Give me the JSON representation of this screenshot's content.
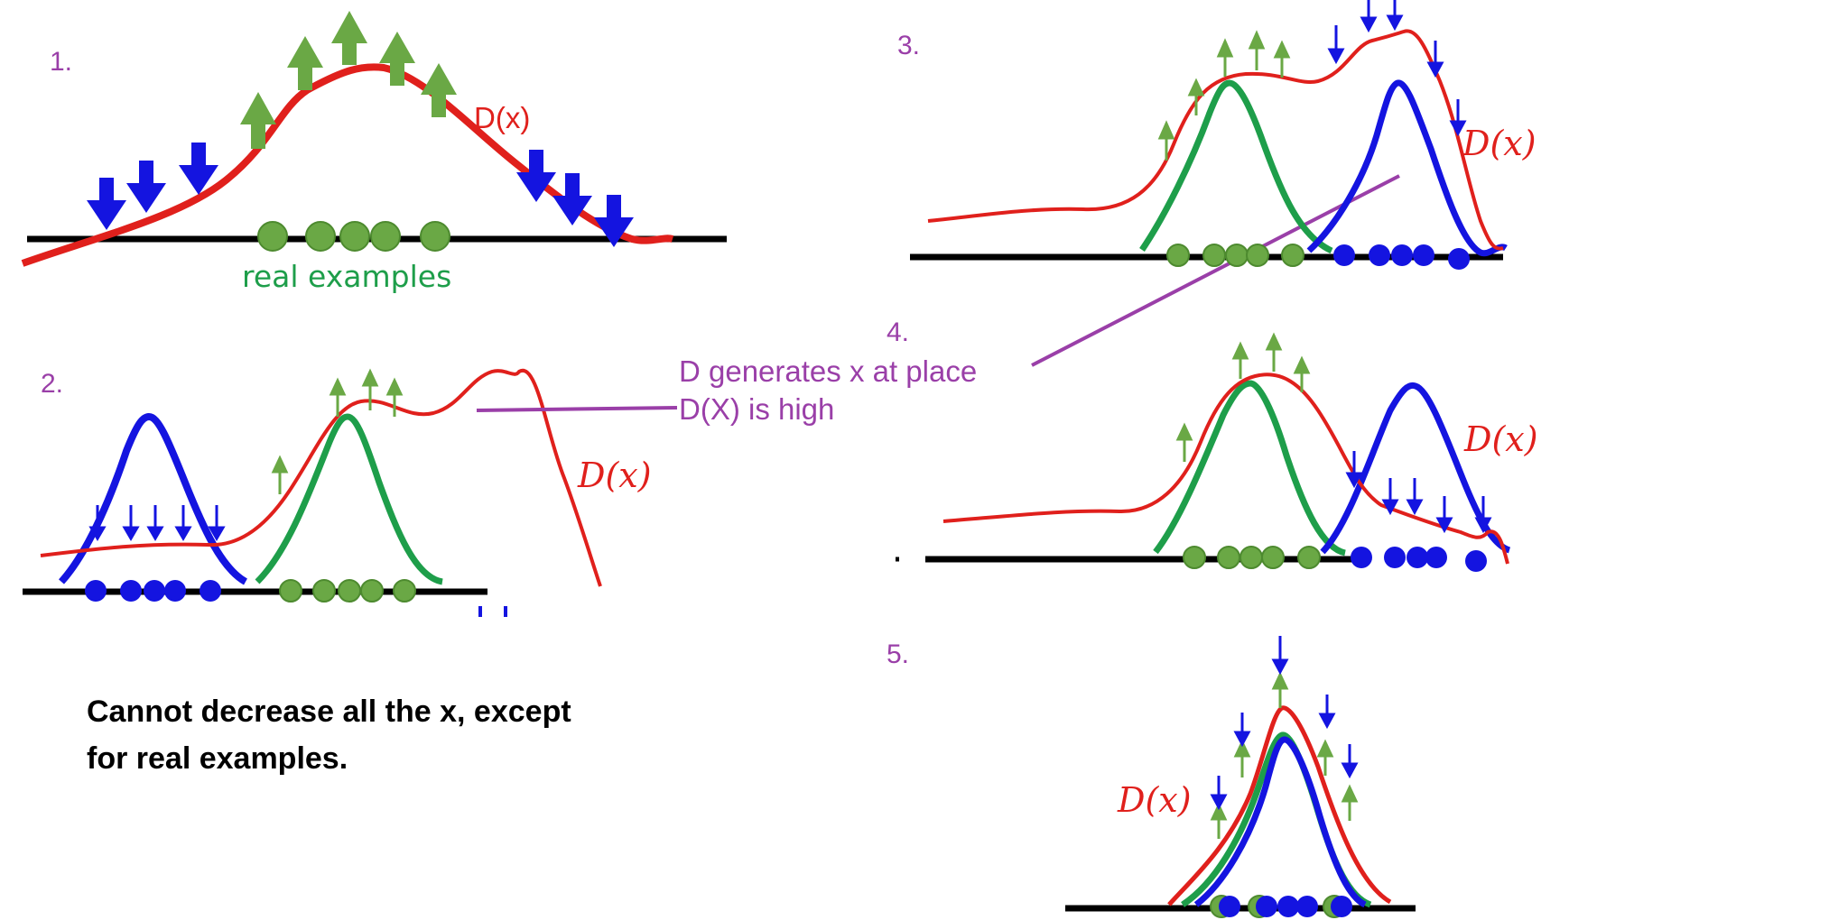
{
  "panels": [
    {
      "number": "1."
    },
    {
      "number": "2."
    },
    {
      "number": "3."
    },
    {
      "number": "4."
    },
    {
      "number": "5."
    }
  ],
  "labels": {
    "real_examples": "real examples",
    "d_label_plain": "D(x)",
    "d_label_math": "D(x)",
    "annotation_line1": "D generates x at place",
    "annotation_line2": "D(X) is high",
    "caption_line1": "Cannot decrease all the x, except",
    "caption_line2": "for real examples."
  },
  "colors": {
    "discriminator": "#e0201c",
    "real": "#1e9e4a",
    "generated": "#1414e0",
    "real_point": "#6aa845",
    "arrow_up": "#6aa845",
    "arrow_down": "#1414e0",
    "annotation": "#9a3fa8",
    "axis": "#000000"
  }
}
